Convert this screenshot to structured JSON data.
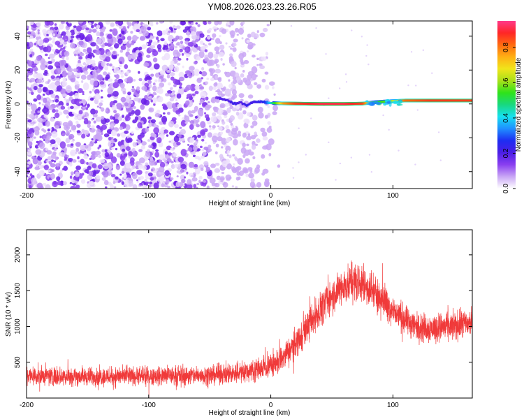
{
  "title": "YM08.2026.023.23.26.R05",
  "colors": {
    "points": "#7a2ae6",
    "snr_line": "#f03a3a",
    "axis": "#000000"
  },
  "chart_data": [
    {
      "type": "heatmap",
      "panel": "top",
      "title": "YM08.2026.023.23.26.R05",
      "xlabel": "Height of straight line (km)",
      "ylabel": "Frequency (Hz)",
      "xlim": [
        -200,
        165
      ],
      "ylim": [
        -50,
        49
      ],
      "xticks": [
        -200,
        -100,
        0,
        100
      ],
      "xtick_labels": [
        "-200",
        "-100",
        "0",
        "100"
      ],
      "yticks": [
        -40,
        -20,
        0,
        20,
        40
      ],
      "ytick_labels": [
        "-40",
        "-20",
        "0",
        "20",
        "40"
      ],
      "noise_region": {
        "x": [
          -200,
          10
        ],
        "y": [
          -50,
          49
        ],
        "fade_start": -50
      },
      "ridge": [
        {
          "x": -45,
          "y": 4,
          "amp": 0.15
        },
        {
          "x": -40,
          "y": 3,
          "amp": 0.22
        },
        {
          "x": -35,
          "y": 2,
          "amp": 0.2
        },
        {
          "x": -30,
          "y": 0,
          "amp": 0.25
        },
        {
          "x": -25,
          "y": 1,
          "amp": 0.2
        },
        {
          "x": -20,
          "y": -1,
          "amp": 0.25
        },
        {
          "x": -15,
          "y": 1,
          "amp": 0.22
        },
        {
          "x": -10,
          "y": 1,
          "amp": 0.25
        },
        {
          "x": -5,
          "y": 1,
          "amp": 0.28
        },
        {
          "x": 0,
          "y": 0.5,
          "amp": 0.45
        },
        {
          "x": 10,
          "y": 0.3,
          "amp": 0.8
        },
        {
          "x": 20,
          "y": 0.2,
          "amp": 0.9
        },
        {
          "x": 40,
          "y": 0,
          "amp": 0.95
        },
        {
          "x": 60,
          "y": 0,
          "amp": 0.95
        },
        {
          "x": 75,
          "y": 0.2,
          "amp": 0.9
        },
        {
          "x": 85,
          "y": 1,
          "amp": 0.55
        },
        {
          "x": 95,
          "y": 1.5,
          "amp": 0.6
        },
        {
          "x": 110,
          "y": 2,
          "amp": 0.85
        },
        {
          "x": 130,
          "y": 2,
          "amp": 0.9
        },
        {
          "x": 150,
          "y": 2,
          "amp": 0.9
        },
        {
          "x": 165,
          "y": 2,
          "amp": 0.9
        }
      ],
      "colorbar": {
        "label": "Normalized spectral amplitude",
        "range": [
          0.0,
          0.95
        ],
        "ticks": [
          0.0,
          0.2,
          0.4,
          0.6,
          0.8
        ],
        "tick_labels": [
          "0.0",
          "0.2",
          "0.4",
          "0.6",
          "0.8"
        ],
        "colormap": [
          "#ffffff",
          "#c9a6f5",
          "#8a3ff0",
          "#4b1ee6",
          "#1e2df2",
          "#1f8fff",
          "#16e0f0",
          "#18d880",
          "#2fe31a",
          "#a8e01a",
          "#f0e51a",
          "#ffb014",
          "#ff6a10",
          "#ff2626",
          "#ff3a8a"
        ]
      }
    },
    {
      "type": "line",
      "panel": "bottom",
      "xlabel": "Height of straight line (km)",
      "ylabel": "SNR (10 * v/v)",
      "xlim": [
        -200,
        165
      ],
      "ylim": [
        0,
        2350
      ],
      "xticks": [
        -200,
        -100,
        0,
        100
      ],
      "xtick_labels": [
        "-200",
        "-100",
        "0",
        "100"
      ],
      "yticks": [
        500,
        1000,
        1500,
        2000
      ],
      "ytick_labels": [
        "500",
        "1000",
        "1500",
        "2000"
      ],
      "series": [
        {
          "name": "SNR",
          "envelope_x": [
            -200,
            -150,
            -100,
            -50,
            -20,
            0,
            10,
            20,
            30,
            40,
            50,
            60,
            70,
            80,
            90,
            100,
            110,
            120,
            130,
            140,
            150,
            160,
            165
          ],
          "envelope_mean": [
            310,
            300,
            305,
            320,
            370,
            450,
            560,
            760,
            1000,
            1230,
            1420,
            1560,
            1620,
            1550,
            1400,
            1220,
            1080,
            1000,
            970,
            990,
            1000,
            1040,
            1050
          ],
          "envelope_spread": [
            200,
            190,
            190,
            200,
            220,
            250,
            270,
            300,
            330,
            350,
            360,
            380,
            400,
            380,
            360,
            330,
            300,
            290,
            300,
            300,
            300,
            300,
            300
          ]
        }
      ]
    }
  ]
}
